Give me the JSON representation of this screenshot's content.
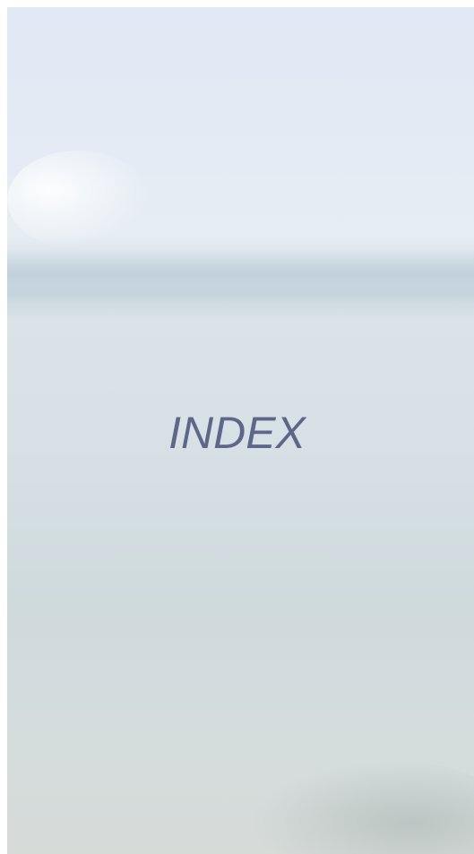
{
  "title": "INDEX"
}
